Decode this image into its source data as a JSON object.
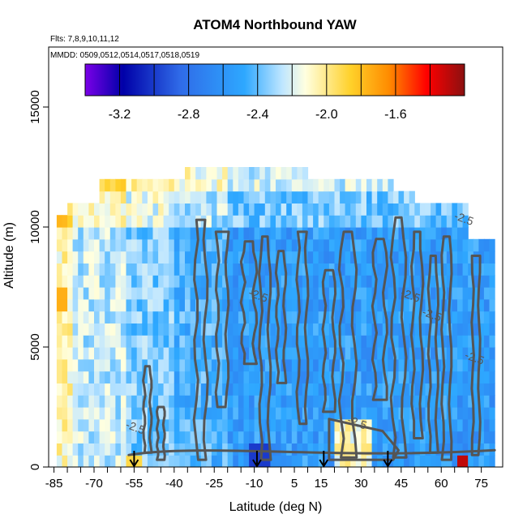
{
  "chart_data": {
    "type": "heatmap",
    "title": "ATOM4 Northbound YAW",
    "flights_label": "Flts: 7,8,9,10,11,12",
    "dates_label": "MMDD: 0509,0512,0514,0517,0518,0519",
    "xlabel": "Latitude (deg N)",
    "ylabel": "Altitude (m)",
    "xlim": [
      -87,
      83
    ],
    "ylim": [
      0,
      17500
    ],
    "x_ticks": [
      -85,
      -70,
      -55,
      -40,
      -25,
      -10,
      5,
      15,
      30,
      45,
      60,
      75
    ],
    "x_tick_labels": [
      "-85",
      "-70",
      "-55",
      "-40",
      "-25",
      "-10",
      "5",
      "15",
      "30",
      "45",
      "60",
      "75"
    ],
    "y_ticks": [
      0,
      5000,
      10000,
      15000
    ],
    "y_tick_labels": [
      "0",
      "5000",
      "10000",
      "15000"
    ],
    "colorbar": {
      "range": [
        -3.4,
        -1.2
      ],
      "ticks": [
        -3.2,
        -2.8,
        -2.4,
        -2.0,
        -1.6
      ],
      "tick_labels": [
        "-3.2",
        "-2.8",
        "-2.4",
        "-2.0",
        "-1.6"
      ],
      "colors": [
        "#7B00E8",
        "#0000A8",
        "#2F6BE8",
        "#2EA8FF",
        "#BFE6FF",
        "#FFFFE0",
        "#FFD12A",
        "#FF8C00",
        "#FF0000",
        "#8B1010"
      ]
    },
    "contour_labels": [
      "-2.5",
      "-2.5",
      "-2.5",
      "-2.5",
      "-2.5",
      "-2.5",
      "-2.5"
    ],
    "profile_arrows_latitude": [
      -55,
      -9,
      16,
      40
    ]
  }
}
